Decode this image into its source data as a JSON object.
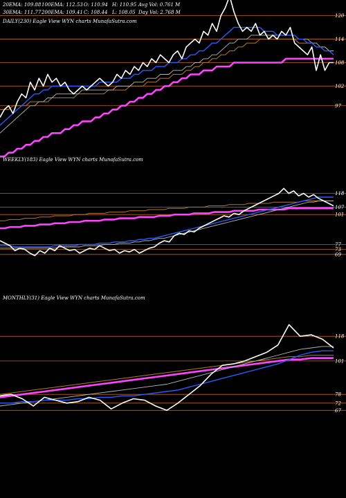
{
  "header": {
    "row1": [
      "20EMA: 109.88",
      "100EMA: 112.53",
      "O: 110.94",
      "H: 110.95",
      "Avg Vol: 0.761 M"
    ],
    "row2": [
      "30EMA: 111.77",
      "200EMA: 109.41",
      "C: 108.44",
      "L: 108.05",
      "Day Vol: 2.768  M"
    ]
  },
  "colors": {
    "background": "#000000",
    "price": "#ffffff",
    "ema_blue": "#2a5cff",
    "ema_pink": "#ff44ff",
    "ema_brown": "#b8782a",
    "support_line": "#c0661a",
    "ema_grey": "#bbbbbb"
  },
  "chart_data": [
    {
      "type": "line",
      "title": "DAILY(230) Eagle  View  WYN  charts MunafaSutra.com",
      "ylim": [
        86,
        124
      ],
      "grid": false,
      "y_ticks": [
        120,
        114,
        108,
        102,
        97
      ],
      "hlines": [
        120,
        114,
        108,
        102,
        97
      ],
      "series": [
        {
          "role": "price",
          "values": [
            94,
            96,
            97,
            95,
            98,
            100,
            99,
            103,
            101,
            104,
            102,
            105,
            103,
            104,
            102,
            103,
            101,
            100,
            101,
            102,
            101,
            102,
            103,
            104,
            103,
            102,
            103,
            105,
            104,
            106,
            105,
            107,
            106,
            108,
            107,
            109,
            108,
            110,
            109,
            108,
            110,
            111,
            109,
            112,
            113,
            114,
            113,
            116,
            115,
            118,
            116,
            120,
            122,
            125,
            121,
            118,
            116,
            117,
            116,
            118,
            115,
            116,
            114,
            115,
            114,
            116,
            115,
            117,
            113,
            112,
            111,
            110,
            112,
            106,
            110,
            106,
            108,
            108
          ]
        },
        {
          "role": "ema_blue",
          "values": [
            92,
            93,
            94,
            95,
            96,
            97,
            98,
            99,
            100,
            100,
            101,
            101,
            102,
            102,
            102,
            102,
            102,
            102,
            102,
            102,
            102,
            102,
            102,
            103,
            103,
            103,
            103,
            103,
            104,
            104,
            104,
            105,
            105,
            106,
            106,
            106,
            107,
            107,
            107,
            108,
            108,
            108,
            109,
            109,
            110,
            110,
            111,
            111,
            112,
            113,
            113,
            114,
            115,
            116,
            117,
            117,
            117,
            117,
            117,
            117,
            117,
            116,
            116,
            116,
            115,
            115,
            115,
            115,
            115,
            114,
            114,
            113,
            113,
            112,
            112,
            111,
            111,
            110
          ]
        },
        {
          "role": "ema_white",
          "values": [
            90,
            91,
            92,
            93,
            94,
            95,
            96,
            97,
            97,
            98,
            98,
            99,
            99,
            100,
            100,
            100,
            100,
            100,
            100,
            101,
            101,
            101,
            101,
            101,
            101,
            101,
            101,
            102,
            102,
            102,
            102,
            103,
            103,
            103,
            104,
            104,
            104,
            105,
            105,
            105,
            106,
            106,
            106,
            107,
            107,
            108,
            108,
            109,
            109,
            110,
            110,
            111,
            112,
            113,
            113,
            114,
            114,
            114,
            115,
            115,
            115,
            115,
            115,
            115,
            115,
            115,
            115,
            115,
            115,
            114,
            114,
            114,
            113,
            113,
            112,
            112,
            111,
            111
          ]
        },
        {
          "role": "ema_brown",
          "values": [
            96,
            96,
            96,
            97,
            97,
            97,
            97,
            98,
            98,
            98,
            98,
            98,
            99,
            99,
            99,
            99,
            99,
            99,
            100,
            100,
            100,
            100,
            100,
            100,
            100,
            101,
            101,
            101,
            101,
            101,
            102,
            102,
            102,
            102,
            103,
            103,
            103,
            104,
            104,
            104,
            105,
            105,
            105,
            106,
            106,
            107,
            107,
            108,
            108,
            109,
            109,
            110,
            110,
            111,
            111,
            112,
            112,
            113,
            113,
            113,
            114,
            114,
            114,
            114,
            114,
            114,
            114,
            114,
            114,
            113,
            113,
            113,
            113,
            112,
            112,
            112,
            111,
            111
          ]
        },
        {
          "role": "ema_pink",
          "values": [
            84,
            84,
            85,
            85,
            86,
            86,
            87,
            87,
            88,
            88,
            89,
            89,
            90,
            90,
            90,
            91,
            91,
            92,
            92,
            93,
            93,
            93,
            94,
            94,
            95,
            95,
            96,
            96,
            97,
            97,
            98,
            98,
            99,
            99,
            100,
            100,
            101,
            101,
            102,
            102,
            103,
            103,
            104,
            104,
            105,
            105,
            105,
            106,
            106,
            106,
            107,
            107,
            107,
            107,
            108,
            108,
            108,
            108,
            108,
            108,
            108,
            108,
            108,
            108,
            108,
            108,
            109,
            109,
            109,
            109,
            109,
            109,
            109,
            109,
            109,
            109,
            109,
            109
          ]
        }
      ]
    },
    {
      "type": "line",
      "title": "WEEKLY(183) Eagle  View  WYN  charts MunafaSutra.com",
      "ylim": [
        40,
        140
      ],
      "grid": false,
      "y_ticks": [
        118,
        107,
        101,
        77,
        73,
        69
      ],
      "hlines": [
        118,
        107,
        101,
        77,
        73,
        69
      ],
      "series": [
        {
          "role": "price",
          "values": [
            80,
            78,
            76,
            72,
            74,
            73,
            70,
            68,
            72,
            70,
            74,
            72,
            76,
            74,
            72,
            73,
            70,
            72,
            74,
            73,
            76,
            74,
            72,
            73,
            70,
            72,
            71,
            73,
            70,
            72,
            74,
            75,
            78,
            80,
            79,
            84,
            86,
            85,
            88,
            87,
            90,
            92,
            94,
            96,
            98,
            100,
            99,
            102,
            101,
            104,
            106,
            108,
            110,
            112,
            114,
            116,
            118,
            122,
            118,
            120,
            116,
            118,
            115,
            117,
            114,
            112,
            110,
            108
          ]
        },
        {
          "role": "ema_blue",
          "values": [
            76,
            76,
            76,
            75,
            75,
            75,
            75,
            75,
            75,
            75,
            75,
            76,
            76,
            76,
            76,
            76,
            77,
            77,
            77,
            77,
            78,
            78,
            78,
            79,
            79,
            79,
            80,
            80,
            81,
            81,
            82,
            82,
            83,
            84,
            85,
            86,
            87,
            88,
            89,
            90,
            91,
            92,
            93,
            94,
            95,
            96,
            97,
            98,
            99,
            100,
            101,
            102,
            103,
            104,
            105,
            106,
            107,
            108,
            109,
            110,
            111,
            112,
            113,
            114,
            115,
            115,
            115,
            115
          ]
        },
        {
          "role": "ema_white",
          "values": [
            74,
            74,
            74,
            74,
            74,
            74,
            74,
            74,
            74,
            74,
            74,
            74,
            75,
            75,
            75,
            75,
            75,
            76,
            76,
            76,
            76,
            77,
            77,
            77,
            78,
            78,
            78,
            79,
            79,
            80,
            80,
            81,
            82,
            82,
            83,
            84,
            85,
            86,
            87,
            88,
            89,
            90,
            91,
            92,
            93,
            94,
            95,
            96,
            97,
            98,
            99,
            100,
            101,
            102,
            103,
            104,
            105,
            106,
            107,
            108,
            109,
            110,
            111,
            111,
            112,
            112,
            112,
            112
          ]
        },
        {
          "role": "ema_brown",
          "values": [
            96,
            96,
            97,
            97,
            97,
            98,
            98,
            98,
            99,
            99,
            99,
            100,
            100,
            100,
            100,
            101,
            101,
            101,
            102,
            102,
            102,
            102,
            103,
            103,
            103,
            103,
            104,
            104,
            104,
            104,
            105,
            105,
            105,
            105,
            106,
            106,
            106,
            106,
            107,
            107,
            107,
            107,
            108,
            108,
            108,
            108,
            109,
            109,
            109,
            109,
            110,
            110,
            110,
            110,
            110,
            111,
            111,
            111,
            111,
            111,
            111,
            112,
            112,
            112,
            112,
            112,
            112,
            112
          ]
        },
        {
          "role": "ema_pink",
          "values": [
            90,
            90,
            91,
            91,
            91,
            92,
            92,
            92,
            93,
            93,
            93,
            94,
            94,
            94,
            95,
            95,
            95,
            96,
            96,
            96,
            96,
            97,
            97,
            97,
            98,
            98,
            98,
            98,
            99,
            99,
            99,
            99,
            100,
            100,
            100,
            101,
            101,
            101,
            101,
            102,
            102,
            102,
            102,
            103,
            103,
            103,
            103,
            104,
            104,
            104,
            104,
            104,
            105,
            105,
            105,
            105,
            105,
            105,
            106,
            106,
            106,
            106,
            106,
            106,
            106,
            106,
            106,
            106
          ]
        }
      ]
    },
    {
      "type": "line",
      "title": "MONTHLY(31) Eagle  View  WYN  charts MunafaSutra.com",
      "ylim": [
        40,
        140
      ],
      "grid": false,
      "y_ticks": [
        118,
        101,
        78,
        72,
        67
      ],
      "hlines": [
        118,
        101,
        78,
        72,
        67
      ],
      "series": [
        {
          "role": "price",
          "values": [
            77,
            78,
            75,
            70,
            76,
            74,
            72,
            73,
            76,
            74,
            68,
            72,
            75,
            74,
            70,
            67,
            72,
            78,
            84,
            92,
            98,
            99,
            101,
            104,
            107,
            112,
            126,
            118,
            119,
            116,
            110
          ]
        },
        {
          "role": "ema_blue",
          "values": [
            72,
            72,
            73,
            73,
            74,
            74,
            74,
            75,
            75,
            76,
            76,
            77,
            77,
            78,
            79,
            80,
            81,
            83,
            85,
            87,
            89,
            91,
            93,
            95,
            97,
            99,
            102,
            105,
            107,
            108,
            108
          ]
        },
        {
          "role": "ema_white",
          "values": [
            70,
            71,
            72,
            73,
            74,
            75,
            76,
            77,
            78,
            79,
            80,
            81,
            82,
            83,
            84,
            85,
            87,
            89,
            91,
            93,
            95,
            97,
            99,
            101,
            103,
            105,
            107,
            109,
            110,
            111,
            111
          ]
        },
        {
          "role": "ema_brown",
          "values": [
            78,
            79,
            80,
            81,
            82,
            83,
            84,
            85,
            86,
            87,
            88,
            89,
            90,
            91,
            92,
            93,
            94,
            95,
            96,
            97,
            98,
            99,
            100,
            101,
            102,
            103,
            104,
            104,
            105,
            105,
            105
          ]
        },
        {
          "role": "ema_pink",
          "values": [
            76,
            77,
            78,
            79,
            80,
            81,
            82,
            83,
            84,
            85,
            86,
            87,
            88,
            89,
            90,
            91,
            92,
            93,
            94,
            95,
            96,
            97,
            98,
            99,
            100,
            101,
            102,
            102,
            103,
            103,
            103
          ]
        }
      ]
    }
  ]
}
